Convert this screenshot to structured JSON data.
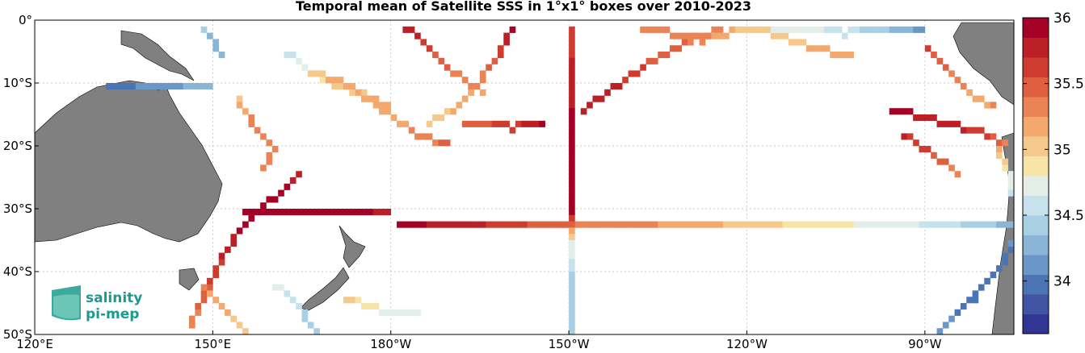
{
  "title": "Temporal mean of Satellite SSS in 1°x1° boxes over 2010-2023",
  "map": {
    "lon_range": [
      120,
      285
    ],
    "lat_range": [
      -50,
      0
    ],
    "x_ticks": [
      {
        "lon": 120,
        "label": "120°E"
      },
      {
        "lon": 150,
        "label": "150°E"
      },
      {
        "lon": 180,
        "label": "180°W"
      },
      {
        "lon": 210,
        "label": "150°W"
      },
      {
        "lon": 240,
        "label": "120°W"
      },
      {
        "lon": 270,
        "label": "90°W"
      }
    ],
    "y_ticks": [
      {
        "lat": 0,
        "label": "0°"
      },
      {
        "lat": -10,
        "label": "10°S"
      },
      {
        "lat": -20,
        "label": "20°S"
      },
      {
        "lat": -30,
        "label": "30°S"
      },
      {
        "lat": -40,
        "label": "40°S"
      },
      {
        "lat": -50,
        "label": "50°S"
      }
    ],
    "grid": true,
    "land_color": "#808080",
    "ocean_color": "#ffffff"
  },
  "colorbar": {
    "min": 33.6,
    "max": 36.0,
    "ticks": [
      {
        "value": 36,
        "label": "36"
      },
      {
        "value": 35.5,
        "label": "35.5"
      },
      {
        "value": 35,
        "label": "35"
      },
      {
        "value": 34.5,
        "label": "34.5"
      },
      {
        "value": 34,
        "label": "34"
      }
    ],
    "colors": [
      "#313695",
      "#3f55a3",
      "#4a74b4",
      "#6a97c7",
      "#8ab5d6",
      "#a9cfe3",
      "#c6e2ec",
      "#e3eee9",
      "#f6e5a6",
      "#f5c98b",
      "#f3a86d",
      "#ea8355",
      "#de6040",
      "#cd3c2f",
      "#bb2027",
      "#a50026"
    ]
  },
  "logo": {
    "line1": "salinity",
    "line2": "pi-mep"
  },
  "tracks": [
    {
      "name": "lat32S",
      "pts": [
        [
          181,
          -32
        ],
        [
          190,
          -32
        ],
        [
          200,
          -32
        ],
        [
          210,
          -32
        ],
        [
          220,
          -32
        ],
        [
          230,
          -32
        ],
        [
          240,
          -32
        ],
        [
          250,
          -32
        ],
        [
          258,
          -32
        ],
        [
          266,
          -32
        ],
        [
          276,
          -32
        ],
        [
          286,
          -32
        ]
      ],
      "vals": [
        35.9,
        35.8,
        35.6,
        35.4,
        35.3,
        35.2,
        35.0,
        34.9,
        34.8,
        34.7,
        34.5,
        34.2
      ]
    },
    {
      "name": "lat30S",
      "pts": [
        [
          155,
          -30
        ],
        [
          165,
          -30
        ],
        [
          174,
          -30
        ],
        [
          180,
          -30
        ]
      ],
      "vals": [
        35.9,
        35.95,
        35.9,
        35.8
      ]
    },
    {
      "name": "lon150W",
      "pts": [
        [
          210,
          -1
        ],
        [
          210,
          -10
        ],
        [
          210,
          -20
        ],
        [
          210,
          -30
        ],
        [
          210,
          -35
        ],
        [
          210,
          -38
        ],
        [
          210,
          -42
        ],
        [
          210,
          -46
        ],
        [
          210,
          -50
        ]
      ],
      "vals": [
        35.6,
        35.8,
        35.95,
        35.9,
        34.8,
        34.6,
        34.4,
        34.5,
        34.4
      ]
    },
    {
      "name": "nz_e",
      "pts": [
        [
          146,
          -48
        ],
        [
          150,
          -40
        ],
        [
          155,
          -32
        ],
        [
          160,
          -28
        ],
        [
          165,
          -24
        ]
      ],
      "vals": [
        35.3,
        35.6,
        35.9,
        35.9,
        35.8
      ]
    },
    {
      "name": "coralsea",
      "pts": [
        [
          154,
          -12
        ],
        [
          156,
          -15
        ],
        [
          158,
          -18
        ],
        [
          160,
          -20
        ],
        [
          158,
          -24
        ]
      ],
      "vals": [
        35.0,
        35.3,
        35.4,
        35.4,
        35.3
      ]
    },
    {
      "name": "tasman_s",
      "pts": [
        [
          148,
          -42
        ],
        [
          152,
          -46
        ],
        [
          156,
          -50
        ],
        [
          162,
          -50
        ]
      ],
      "vals": [
        35.3,
        35.1,
        34.9,
        34.6
      ]
    },
    {
      "name": "png_n",
      "pts": [
        [
          148,
          -1
        ],
        [
          150,
          -3
        ],
        [
          152,
          -6
        ]
      ],
      "vals": [
        34.4,
        34.3,
        34.2
      ]
    },
    {
      "name": "w10S",
      "pts": [
        [
          132,
          -10
        ],
        [
          140,
          -10
        ],
        [
          150,
          -10
        ]
      ],
      "vals": [
        34.0,
        34.1,
        34.3
      ]
    },
    {
      "name": "solomon",
      "pts": [
        [
          162,
          -5
        ],
        [
          166,
          -8
        ],
        [
          170,
          -10
        ],
        [
          176,
          -12
        ],
        [
          180,
          -14
        ]
      ],
      "vals": [
        34.6,
        34.8,
        35.0,
        35.1,
        35.3
      ]
    },
    {
      "name": "c_north1",
      "pts": [
        [
          182,
          -1
        ],
        [
          186,
          -4
        ],
        [
          190,
          -8
        ],
        [
          196,
          -12
        ]
      ],
      "vals": [
        35.8,
        35.6,
        35.4,
        35.2
      ]
    },
    {
      "name": "c_north2",
      "pts": [
        [
          200,
          -1
        ],
        [
          198,
          -5
        ],
        [
          195,
          -9
        ],
        [
          190,
          -14
        ],
        [
          185,
          -17
        ]
      ],
      "vals": [
        35.9,
        35.6,
        35.3,
        35.1,
        35.0
      ]
    },
    {
      "name": "c_diag",
      "pts": [
        [
          166,
          -8
        ],
        [
          172,
          -10
        ],
        [
          178,
          -14
        ],
        [
          184,
          -18
        ],
        [
          190,
          -20
        ]
      ],
      "vals": [
        35.0,
        35.2,
        35.1,
        35.3,
        35.5
      ]
    },
    {
      "name": "east_diag1",
      "pts": [
        [
          212,
          -14
        ],
        [
          218,
          -10
        ],
        [
          224,
          -6
        ],
        [
          230,
          -3
        ],
        [
          236,
          -1
        ]
      ],
      "vals": [
        35.8,
        35.7,
        35.5,
        35.4,
        35.3
      ]
    },
    {
      "name": "east_top",
      "pts": [
        [
          222,
          -1
        ],
        [
          232,
          -3
        ],
        [
          240,
          -1
        ],
        [
          250,
          -4
        ],
        [
          258,
          -6
        ]
      ],
      "vals": [
        35.4,
        35.3,
        35.0,
        35.1,
        35.2
      ]
    },
    {
      "name": "east_topline",
      "pts": [
        [
          244,
          -1
        ],
        [
          256,
          -2
        ],
        [
          262,
          -1
        ],
        [
          270,
          -2
        ]
      ],
      "vals": [
        34.8,
        34.6,
        34.4,
        34.1
      ]
    },
    {
      "name": "peru1",
      "pts": [
        [
          264,
          -14
        ],
        [
          272,
          -16
        ],
        [
          280,
          -18
        ],
        [
          284,
          -20
        ]
      ],
      "vals": [
        35.9,
        35.8,
        35.6,
        35.3
      ]
    },
    {
      "name": "peru2",
      "pts": [
        [
          266,
          -18
        ],
        [
          272,
          -22
        ],
        [
          276,
          -25
        ]
      ],
      "vals": [
        35.7,
        35.5,
        35.2
      ]
    },
    {
      "name": "peru3",
      "pts": [
        [
          270,
          -4
        ],
        [
          274,
          -8
        ],
        [
          278,
          -12
        ],
        [
          282,
          -14
        ]
      ],
      "vals": [
        35.6,
        35.4,
        35.2,
        35.3
      ]
    },
    {
      "name": "chile_s",
      "pts": [
        [
          272,
          -49
        ],
        [
          278,
          -44
        ],
        [
          283,
          -38
        ],
        [
          285,
          -34
        ]
      ],
      "vals": [
        34.1,
        34.0,
        34.0,
        34.1
      ]
    },
    {
      "name": "mid_s",
      "pts": [
        [
          172,
          -44
        ],
        [
          178,
          -46
        ],
        [
          185,
          -47
        ]
      ],
      "vals": [
        35.0,
        34.8,
        34.7
      ]
    },
    {
      "name": "nz_e2",
      "pts": [
        [
          160,
          -42
        ],
        [
          165,
          -46
        ],
        [
          168,
          -50
        ]
      ],
      "vals": [
        34.7,
        34.5,
        34.4
      ]
    },
    {
      "name": "w_coast",
      "pts": [
        [
          192,
          -16
        ],
        [
          200,
          -17
        ],
        [
          206,
          -16
        ]
      ],
      "vals": [
        35.5,
        35.6,
        35.9
      ]
    },
    {
      "name": "far_e",
      "pts": [
        [
          282,
          -20
        ],
        [
          284,
          -24
        ],
        [
          285,
          -28
        ]
      ],
      "vals": [
        35.1,
        34.8,
        34.6
      ]
    }
  ]
}
